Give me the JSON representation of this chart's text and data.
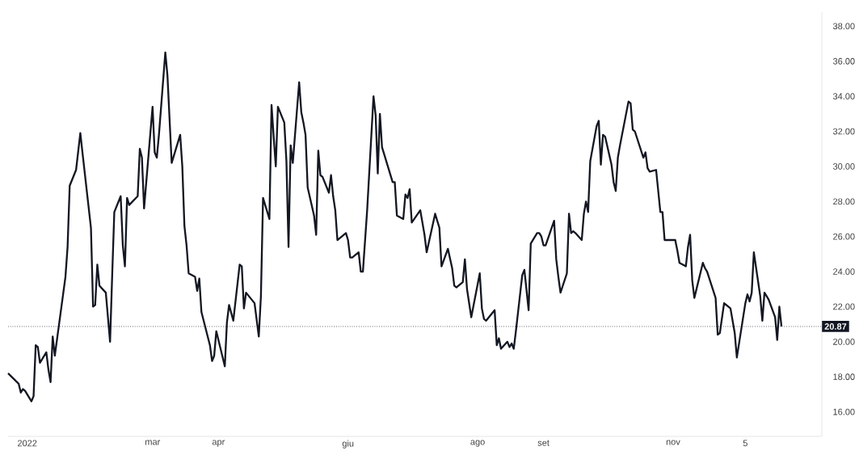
{
  "chart_data": {
    "type": "line",
    "x": [
      "2021-12-23",
      "2021-12-28",
      "2021-12-29",
      "2021-12-30",
      "2021-12-31",
      "2022-01-03",
      "2022-01-04",
      "2022-01-05",
      "2022-01-06",
      "2022-01-07",
      "2022-01-10",
      "2022-01-11",
      "2022-01-12",
      "2022-01-13",
      "2022-01-14",
      "2022-01-18",
      "2022-01-19",
      "2022-01-20",
      "2022-01-21",
      "2022-01-24",
      "2022-01-26",
      "2022-01-27",
      "2022-01-31",
      "2022-02-01",
      "2022-02-02",
      "2022-02-03",
      "2022-02-04",
      "2022-02-07",
      "2022-02-09",
      "2022-02-10",
      "2022-02-11",
      "2022-02-14",
      "2022-02-15",
      "2022-02-16",
      "2022-02-17",
      "2022-02-18",
      "2022-02-22",
      "2022-02-23",
      "2022-02-24",
      "2022-02-25",
      "2022-03-01",
      "2022-03-02",
      "2022-03-03",
      "2022-03-04",
      "2022-03-07",
      "2022-03-08",
      "2022-03-10",
      "2022-03-11",
      "2022-03-14",
      "2022-03-15",
      "2022-03-16",
      "2022-03-17",
      "2022-03-18",
      "2022-03-21",
      "2022-03-22",
      "2022-03-23",
      "2022-03-24",
      "2022-03-28",
      "2022-03-29",
      "2022-03-30",
      "2022-03-31",
      "2022-04-04",
      "2022-04-05",
      "2022-04-06",
      "2022-04-08",
      "2022-04-11",
      "2022-04-12",
      "2022-04-13",
      "2022-04-14",
      "2022-04-18",
      "2022-04-20",
      "2022-04-21",
      "2022-04-22",
      "2022-04-25",
      "2022-04-26",
      "2022-04-27",
      "2022-04-28",
      "2022-04-29",
      "2022-05-02",
      "2022-05-03",
      "2022-05-04",
      "2022-05-05",
      "2022-05-06",
      "2022-05-09",
      "2022-05-10",
      "2022-05-11",
      "2022-05-12",
      "2022-05-13",
      "2022-05-16",
      "2022-05-17",
      "2022-05-18",
      "2022-05-19",
      "2022-05-20",
      "2022-05-23",
      "2022-05-24",
      "2022-05-25",
      "2022-05-26",
      "2022-05-27",
      "2022-05-31",
      "2022-06-01",
      "2022-06-02",
      "2022-06-03",
      "2022-06-06",
      "2022-06-07",
      "2022-06-08",
      "2022-06-10",
      "2022-06-13",
      "2022-06-14",
      "2022-06-15",
      "2022-06-16",
      "2022-06-17",
      "2022-06-22",
      "2022-06-23",
      "2022-06-24",
      "2022-06-27",
      "2022-06-28",
      "2022-06-29",
      "2022-06-30",
      "2022-07-01",
      "2022-07-05",
      "2022-07-07",
      "2022-07-08",
      "2022-07-12",
      "2022-07-14",
      "2022-07-15",
      "2022-07-18",
      "2022-07-20",
      "2022-07-21",
      "2022-07-22",
      "2022-07-25",
      "2022-07-26",
      "2022-07-27",
      "2022-07-29",
      "2022-08-02",
      "2022-08-03",
      "2022-08-04",
      "2022-08-05",
      "2022-08-09",
      "2022-08-10",
      "2022-08-11",
      "2022-08-12",
      "2022-08-15",
      "2022-08-16",
      "2022-08-17",
      "2022-08-18",
      "2022-08-19",
      "2022-08-22",
      "2022-08-23",
      "2022-08-25",
      "2022-08-26",
      "2022-08-29",
      "2022-08-30",
      "2022-08-31",
      "2022-09-01",
      "2022-09-02",
      "2022-09-06",
      "2022-09-07",
      "2022-09-08",
      "2022-09-09",
      "2022-09-12",
      "2022-09-13",
      "2022-09-14",
      "2022-09-15",
      "2022-09-16",
      "2022-09-19",
      "2022-09-20",
      "2022-09-21",
      "2022-09-22",
      "2022-09-23",
      "2022-09-26",
      "2022-09-27",
      "2022-09-28",
      "2022-09-29",
      "2022-09-30",
      "2022-10-03",
      "2022-10-04",
      "2022-10-05",
      "2022-10-06",
      "2022-10-07",
      "2022-10-11",
      "2022-10-12",
      "2022-10-13",
      "2022-10-14",
      "2022-10-18",
      "2022-10-19",
      "2022-10-20",
      "2022-10-21",
      "2022-10-24",
      "2022-10-26",
      "2022-10-27",
      "2022-10-28",
      "2022-10-31",
      "2022-11-02",
      "2022-11-03",
      "2022-11-04",
      "2022-11-07",
      "2022-11-08",
      "2022-11-09",
      "2022-11-10",
      "2022-11-11",
      "2022-11-15",
      "2022-11-16",
      "2022-11-17",
      "2022-11-21",
      "2022-11-22",
      "2022-11-23",
      "2022-11-25",
      "2022-11-28",
      "2022-11-30",
      "2022-12-01",
      "2022-12-05",
      "2022-12-06",
      "2022-12-07",
      "2022-12-08",
      "2022-12-09",
      "2022-12-12",
      "2022-12-13",
      "2022-12-14",
      "2022-12-15",
      "2022-12-16",
      "2022-12-19",
      "2022-12-20",
      "2022-12-21",
      "2022-12-22"
    ],
    "series": [
      {
        "color": "#131722",
        "values": [
          18.2,
          17.6,
          17.1,
          17.3,
          17.2,
          16.6,
          16.9,
          19.8,
          19.7,
          18.8,
          19.4,
          18.4,
          17.7,
          20.3,
          19.2,
          22.8,
          23.7,
          25.4,
          28.9,
          29.8,
          31.9,
          30.8,
          26.5,
          22.0,
          22.1,
          24.4,
          23.2,
          22.8,
          20.0,
          23.8,
          27.4,
          28.3,
          25.5,
          24.3,
          28.2,
          27.8,
          28.3,
          31.0,
          30.5,
          27.6,
          33.4,
          30.8,
          30.5,
          31.8,
          36.5,
          35.2,
          30.2,
          30.6,
          31.8,
          30.0,
          26.6,
          25.5,
          23.9,
          23.7,
          22.9,
          23.6,
          21.7,
          19.8,
          18.9,
          19.2,
          20.6,
          18.6,
          21.1,
          22.1,
          21.2,
          24.4,
          24.3,
          21.9,
          22.8,
          22.2,
          20.3,
          22.6,
          28.2,
          27.0,
          33.5,
          31.7,
          30.0,
          33.4,
          32.5,
          30.3,
          25.4,
          31.2,
          30.2,
          34.8,
          33.1,
          32.5,
          31.8,
          28.8,
          27.2,
          26.1,
          30.9,
          29.5,
          29.4,
          28.5,
          29.5,
          28.3,
          27.5,
          25.8,
          26.2,
          25.8,
          24.8,
          24.8,
          25.1,
          24.0,
          24.0,
          27.5,
          34.0,
          32.9,
          29.6,
          33.0,
          31.1,
          29.1,
          29.1,
          27.2,
          27.0,
          28.4,
          28.2,
          28.7,
          26.8,
          27.5,
          26.1,
          25.1,
          27.3,
          26.5,
          24.3,
          25.3,
          24.2,
          23.2,
          23.1,
          23.4,
          24.7,
          23.0,
          21.4,
          23.9,
          21.9,
          21.3,
          21.2,
          21.8,
          19.8,
          20.2,
          19.6,
          20.0,
          19.7,
          19.9,
          19.6,
          20.6,
          23.8,
          24.1,
          21.8,
          25.6,
          26.2,
          26.2,
          26.0,
          25.5,
          25.5,
          26.9,
          24.7,
          23.7,
          22.8,
          23.9,
          27.3,
          26.2,
          26.3,
          26.2,
          25.8,
          27.3,
          28.0,
          27.4,
          30.3,
          32.3,
          32.6,
          30.1,
          31.8,
          31.7,
          30.1,
          29.1,
          28.6,
          30.5,
          31.2,
          33.7,
          33.6,
          32.1,
          32.0,
          30.5,
          30.8,
          29.9,
          29.7,
          29.8,
          27.4,
          27.4,
          25.8,
          25.8,
          25.8,
          25.2,
          24.5,
          24.3,
          25.4,
          26.1,
          23.5,
          22.5,
          24.5,
          24.2,
          24.0,
          22.5,
          20.4,
          20.5,
          22.2,
          21.9,
          20.5,
          19.1,
          22.2,
          22.7,
          22.3,
          22.8,
          25.1,
          22.6,
          21.2,
          22.8,
          22.6,
          22.4,
          21.4,
          20.1,
          22.0,
          20.87
        ]
      }
    ],
    "xlim": [
      "2021-12-23",
      "2023-01-10"
    ],
    "ylim": [
      14.6,
      38.8
    ],
    "xticks": [
      {
        "value": "2022-01-01",
        "label": "2022"
      },
      {
        "value": "2022-03-01",
        "label": "mar"
      },
      {
        "value": "2022-04-01",
        "label": "apr"
      },
      {
        "value": "2022-06-01",
        "label": "giu"
      },
      {
        "value": "2022-08-01",
        "label": "ago"
      },
      {
        "value": "2022-09-01",
        "label": "set"
      },
      {
        "value": "2022-11-01",
        "label": "nov"
      },
      {
        "value": "2022-12-05",
        "label": "5"
      }
    ],
    "yticks": [
      {
        "value": 16,
        "label": "16.00"
      },
      {
        "value": 18,
        "label": "18.00"
      },
      {
        "value": 20,
        "label": "20.00"
      },
      {
        "value": 22,
        "label": "22.00"
      },
      {
        "value": 24,
        "label": "24.00"
      },
      {
        "value": 26,
        "label": "26.00"
      },
      {
        "value": 28,
        "label": "28.00"
      },
      {
        "value": 30,
        "label": "30.00"
      },
      {
        "value": 32,
        "label": "32.00"
      },
      {
        "value": 34,
        "label": "34.00"
      },
      {
        "value": 36,
        "label": "36.00"
      },
      {
        "value": 38,
        "label": "38.00"
      }
    ],
    "ref_lines": [
      {
        "axis": "y",
        "value": 20.87,
        "label": "20.87",
        "color": "#131722",
        "line_style": "dotted"
      }
    ],
    "line_style": "solid"
  }
}
